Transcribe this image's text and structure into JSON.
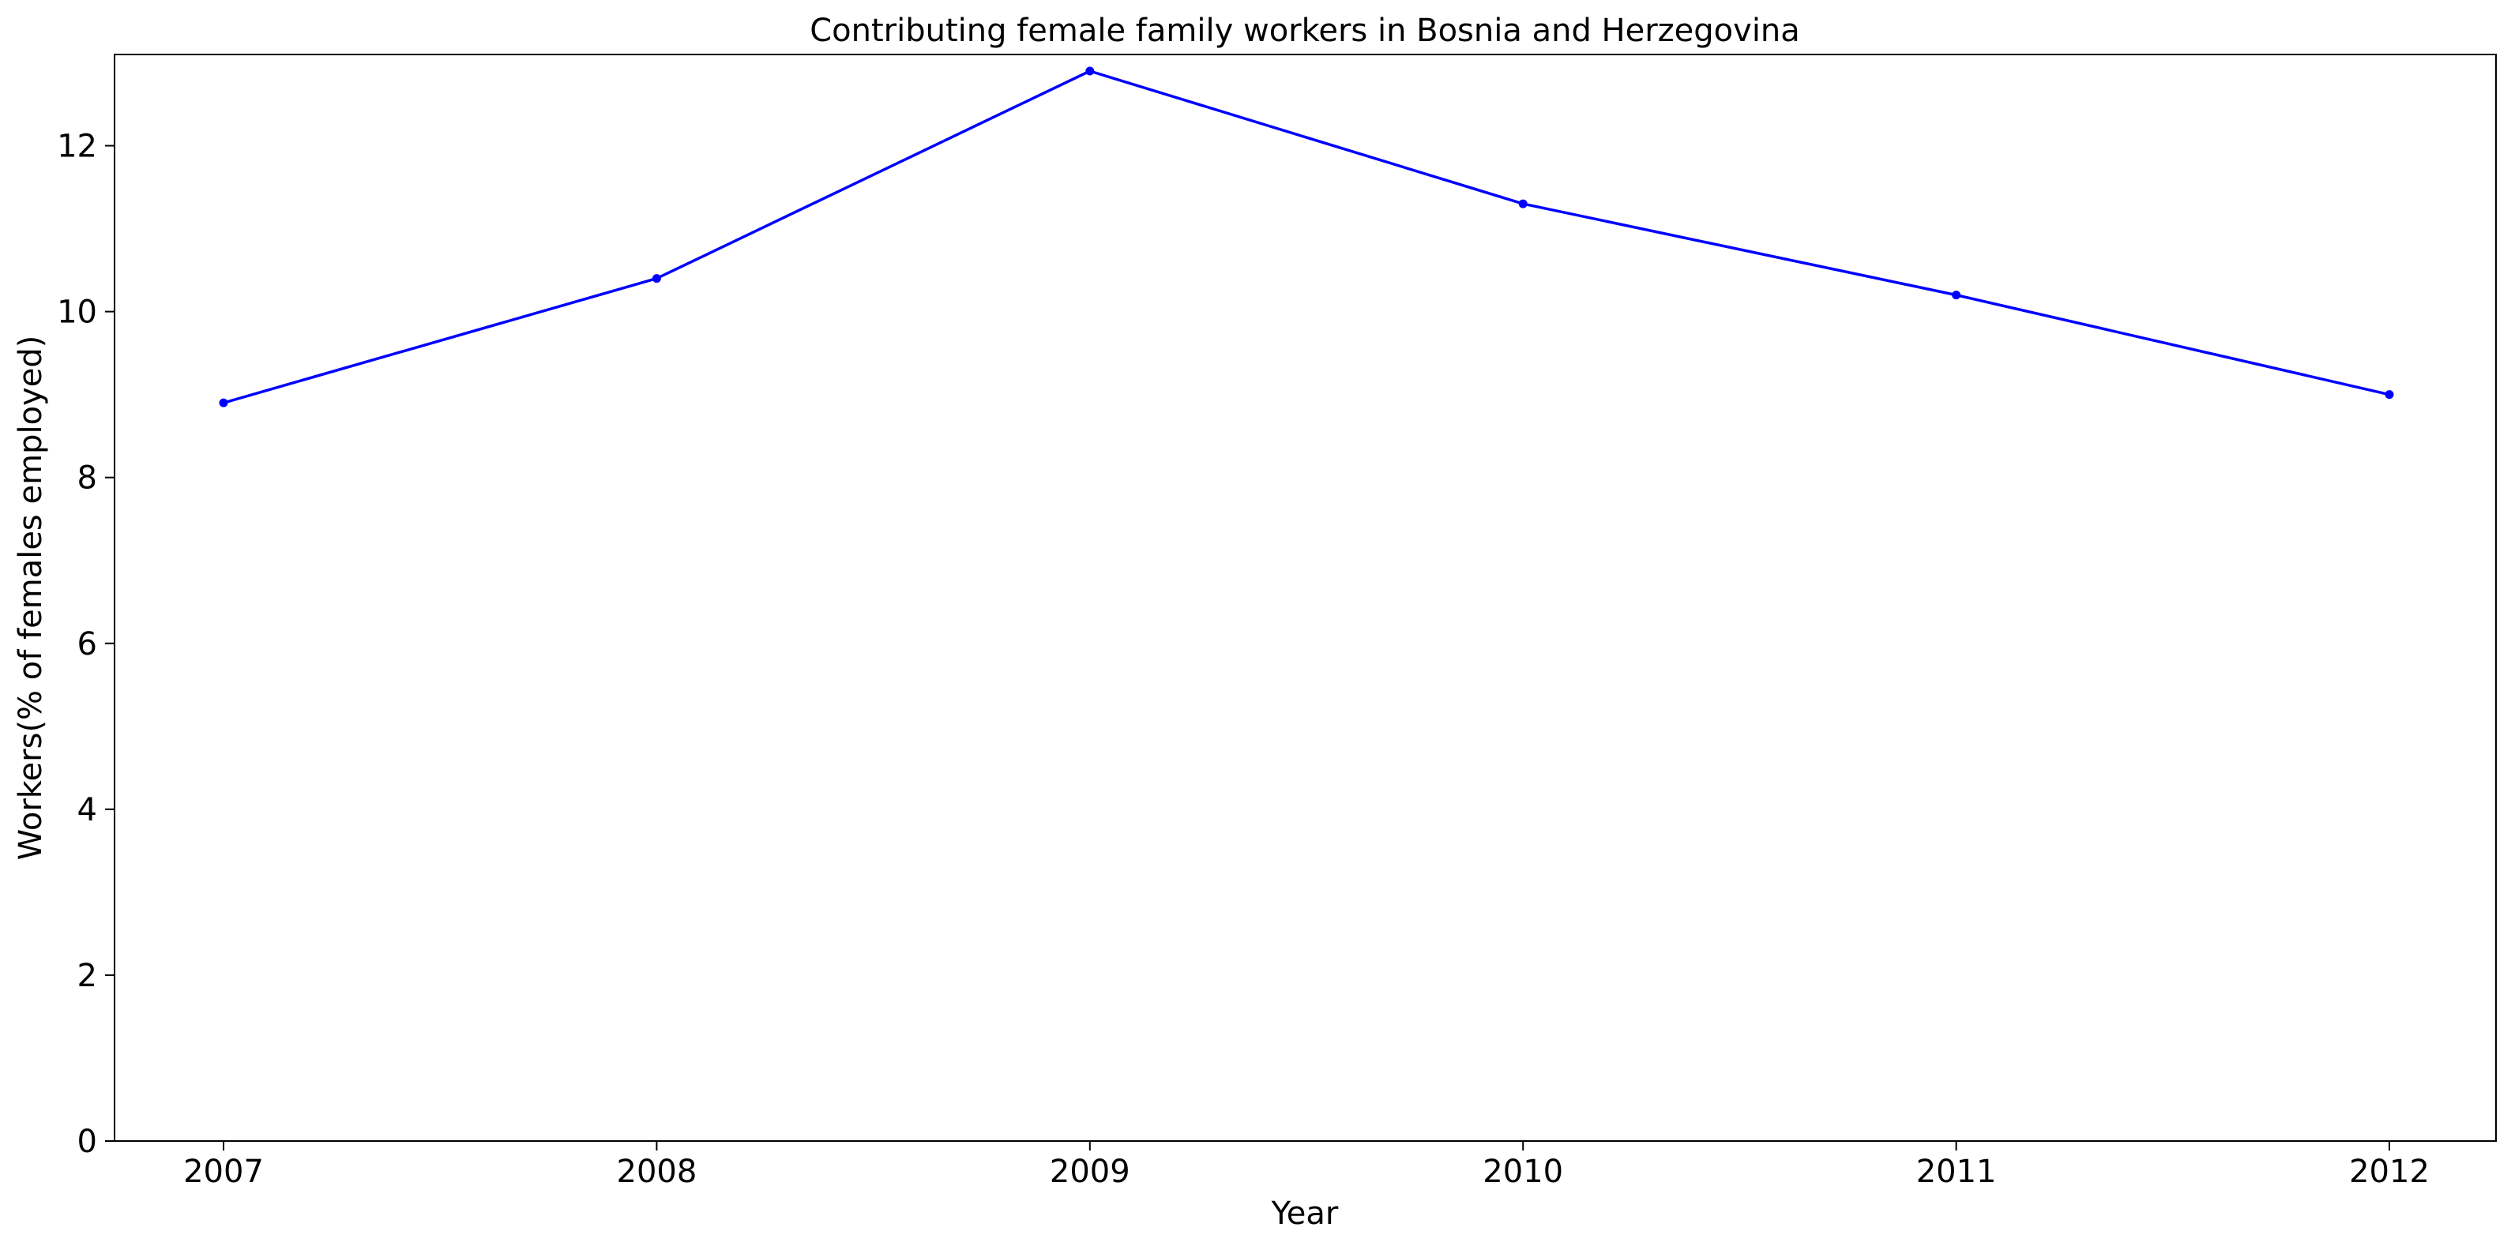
{
  "chart_data": {
    "type": "line",
    "title": "Contributing female family workers in Bosnia and Herzegovina",
    "xlabel": "Year",
    "ylabel": "Workers(% of females employed)",
    "categories": [
      "2007",
      "2008",
      "2009",
      "2010",
      "2011",
      "2012"
    ],
    "series": [
      {
        "values": [
          8.9,
          10.4,
          12.9,
          11.3,
          10.2,
          9.0
        ],
        "color": "#0000ff",
        "marker": "circle"
      }
    ],
    "ylim": [
      0,
      13.1
    ],
    "yticks": [
      0,
      2,
      4,
      6,
      8,
      10,
      12
    ],
    "grid": false,
    "legend": "none"
  }
}
